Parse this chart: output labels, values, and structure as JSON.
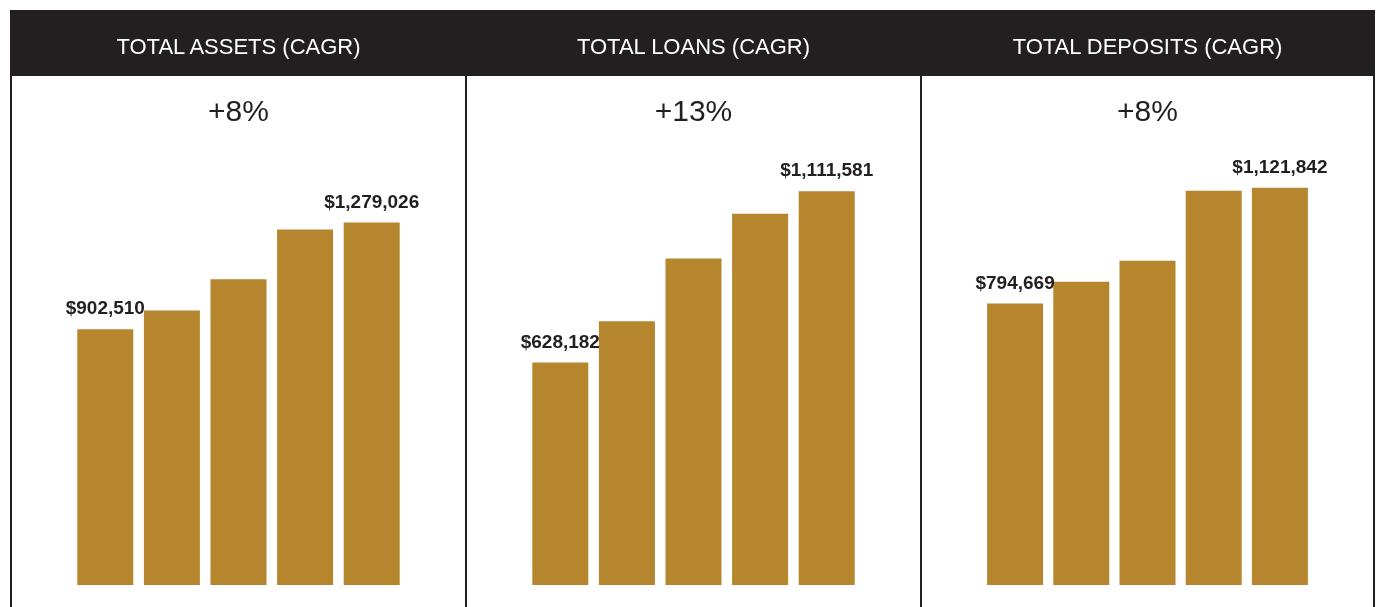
{
  "chart_data": [
    {
      "type": "bar",
      "title": "TOTAL ASSETS (CAGR)",
      "subtitle": "+8%",
      "categories": [
        null,
        null,
        null,
        null,
        null
      ],
      "values": [
        902510,
        968600,
        1079000,
        1254700,
        1279026
      ],
      "value_labels": [
        "$902,510",
        null,
        null,
        null,
        "$1,279,026"
      ],
      "color": "#b5862e"
    },
    {
      "type": "bar",
      "title": "TOTAL LOANS (CAGR)",
      "subtitle": "+13%",
      "categories": [
        null,
        null,
        null,
        null,
        null
      ],
      "values": [
        628182,
        745000,
        921800,
        1048400,
        1111581
      ],
      "value_labels": [
        "$628,182",
        null,
        null,
        null,
        "$1,111,581"
      ],
      "color": "#b5862e"
    },
    {
      "type": "bar",
      "title": "TOTAL DEPOSITS (CAGR)",
      "subtitle": "+8%",
      "categories": [
        null,
        null,
        null,
        null,
        null
      ],
      "values": [
        794669,
        856400,
        915400,
        1113300,
        1121842
      ],
      "value_labels": [
        "$794,669",
        null,
        null,
        null,
        "$1,121,842"
      ],
      "color": "#b5862e"
    }
  ]
}
